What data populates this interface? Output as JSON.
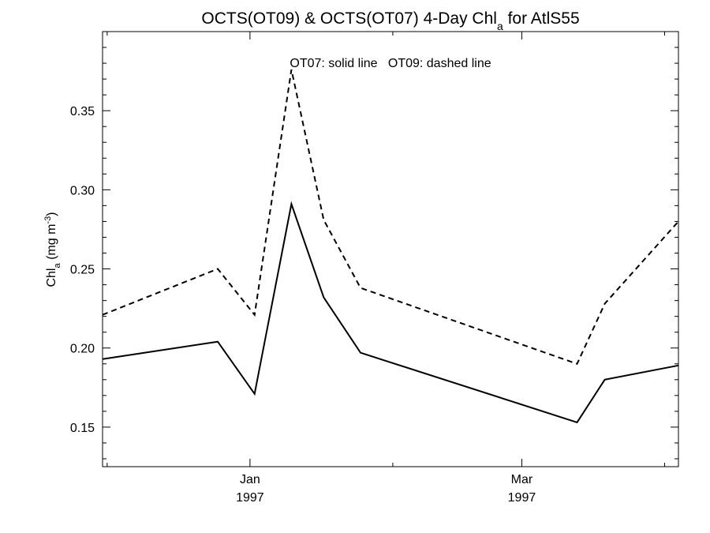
{
  "chart_data": {
    "type": "line",
    "title": "OCTS(OT09) & OCTS(OT07) 4-Day Chl",
    "title_subscript": "a",
    "title_suffix": " for AtlS55",
    "ylabel_main": "Chl",
    "ylabel_sub": "a",
    "ylabel_units": " (mg m",
    "ylabel_sup": "-3",
    "ylabel_close": ")",
    "annotation": "OT07: solid line   OT09: dashed line",
    "x_domain": [
      "1996-11-30",
      "1997-04-04"
    ],
    "ylim": [
      0.125,
      0.4
    ],
    "y_ticks": [
      0.15,
      0.2,
      0.25,
      0.3,
      0.35
    ],
    "y_tick_labels": [
      "0.15",
      "0.20",
      "0.25",
      "0.30",
      "0.35"
    ],
    "x_major_ticks": [
      {
        "x": "1997-01-01",
        "label1": "Jan",
        "label2": "1997"
      },
      {
        "x": "1997-03-01",
        "label1": "Mar",
        "label2": "1997"
      }
    ],
    "x_minor_ticks": [
      "1996-12-01",
      "1997-02-01",
      "1997-04-01"
    ],
    "series": [
      {
        "style": "solid",
        "x": [
          "1996-11-30",
          "1996-12-25",
          "1997-01-02",
          "1997-01-10",
          "1997-01-17",
          "1997-01-25",
          "1997-03-13",
          "1997-03-19",
          "1997-04-04"
        ],
        "values": [
          0.193,
          0.204,
          0.171,
          0.291,
          0.232,
          0.197,
          0.153,
          0.18,
          0.189
        ]
      },
      {
        "style": "dashed",
        "x": [
          "1996-11-30",
          "1996-12-25",
          "1997-01-02",
          "1997-01-10",
          "1997-01-17",
          "1997-01-25",
          "1997-03-13",
          "1997-03-19",
          "1997-04-04"
        ],
        "values": [
          0.221,
          0.25,
          0.221,
          0.376,
          0.281,
          0.238,
          0.19,
          0.228,
          0.28
        ]
      }
    ],
    "grid": false
  }
}
